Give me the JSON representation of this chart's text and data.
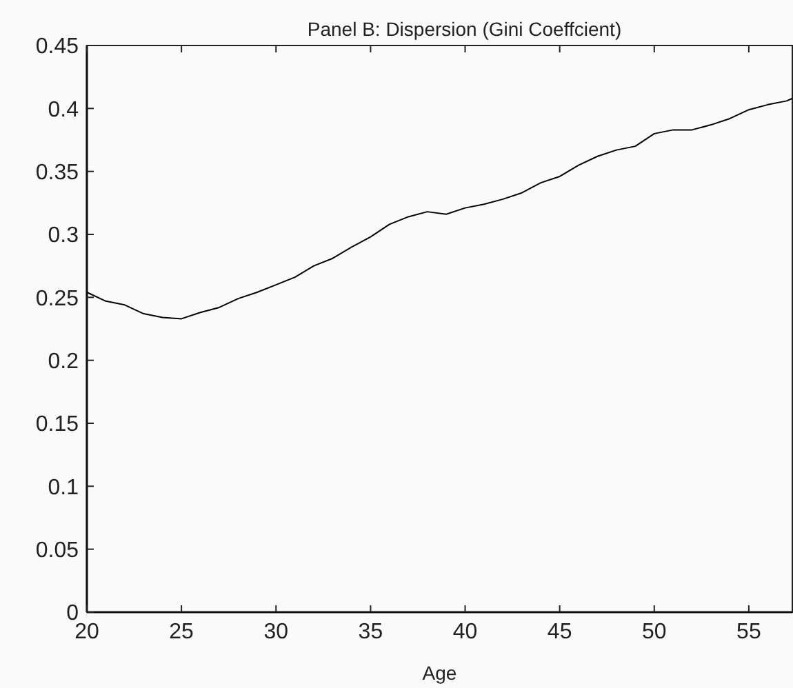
{
  "chart_data": {
    "type": "line",
    "title": "Panel B: Dispersion (Gini Coeffcient)",
    "xlabel": "Age",
    "x": [
      20,
      21,
      22,
      23,
      24,
      25,
      26,
      27,
      28,
      29,
      30,
      31,
      32,
      33,
      34,
      35,
      36,
      37,
      38,
      39,
      40,
      41,
      42,
      43,
      44,
      45,
      46,
      47,
      48,
      49,
      50,
      51,
      52,
      53,
      54,
      55,
      56,
      57,
      57.3
    ],
    "series": [
      {
        "color": "#000000",
        "values": [
          0.254,
          0.247,
          0.244,
          0.237,
          0.234,
          0.233,
          0.238,
          0.242,
          0.249,
          0.254,
          0.26,
          0.266,
          0.275,
          0.281,
          0.29,
          0.298,
          0.308,
          0.314,
          0.318,
          0.316,
          0.321,
          0.324,
          0.328,
          0.333,
          0.341,
          0.346,
          0.355,
          0.362,
          0.367,
          0.37,
          0.38,
          0.383,
          0.383,
          0.387,
          0.392,
          0.399,
          0.403,
          0.406,
          0.408
        ]
      }
    ],
    "xlim": [
      20,
      57.3
    ],
    "xticks": [
      20,
      25,
      30,
      35,
      40,
      45,
      50,
      55
    ],
    "ylim": [
      0,
      0.45
    ],
    "yticks": [
      0,
      0.05,
      0.1,
      0.15,
      0.2,
      0.25,
      0.3,
      0.35,
      0.4,
      0.45
    ],
    "grid": false,
    "marker": "none",
    "line_style": "solid"
  }
}
